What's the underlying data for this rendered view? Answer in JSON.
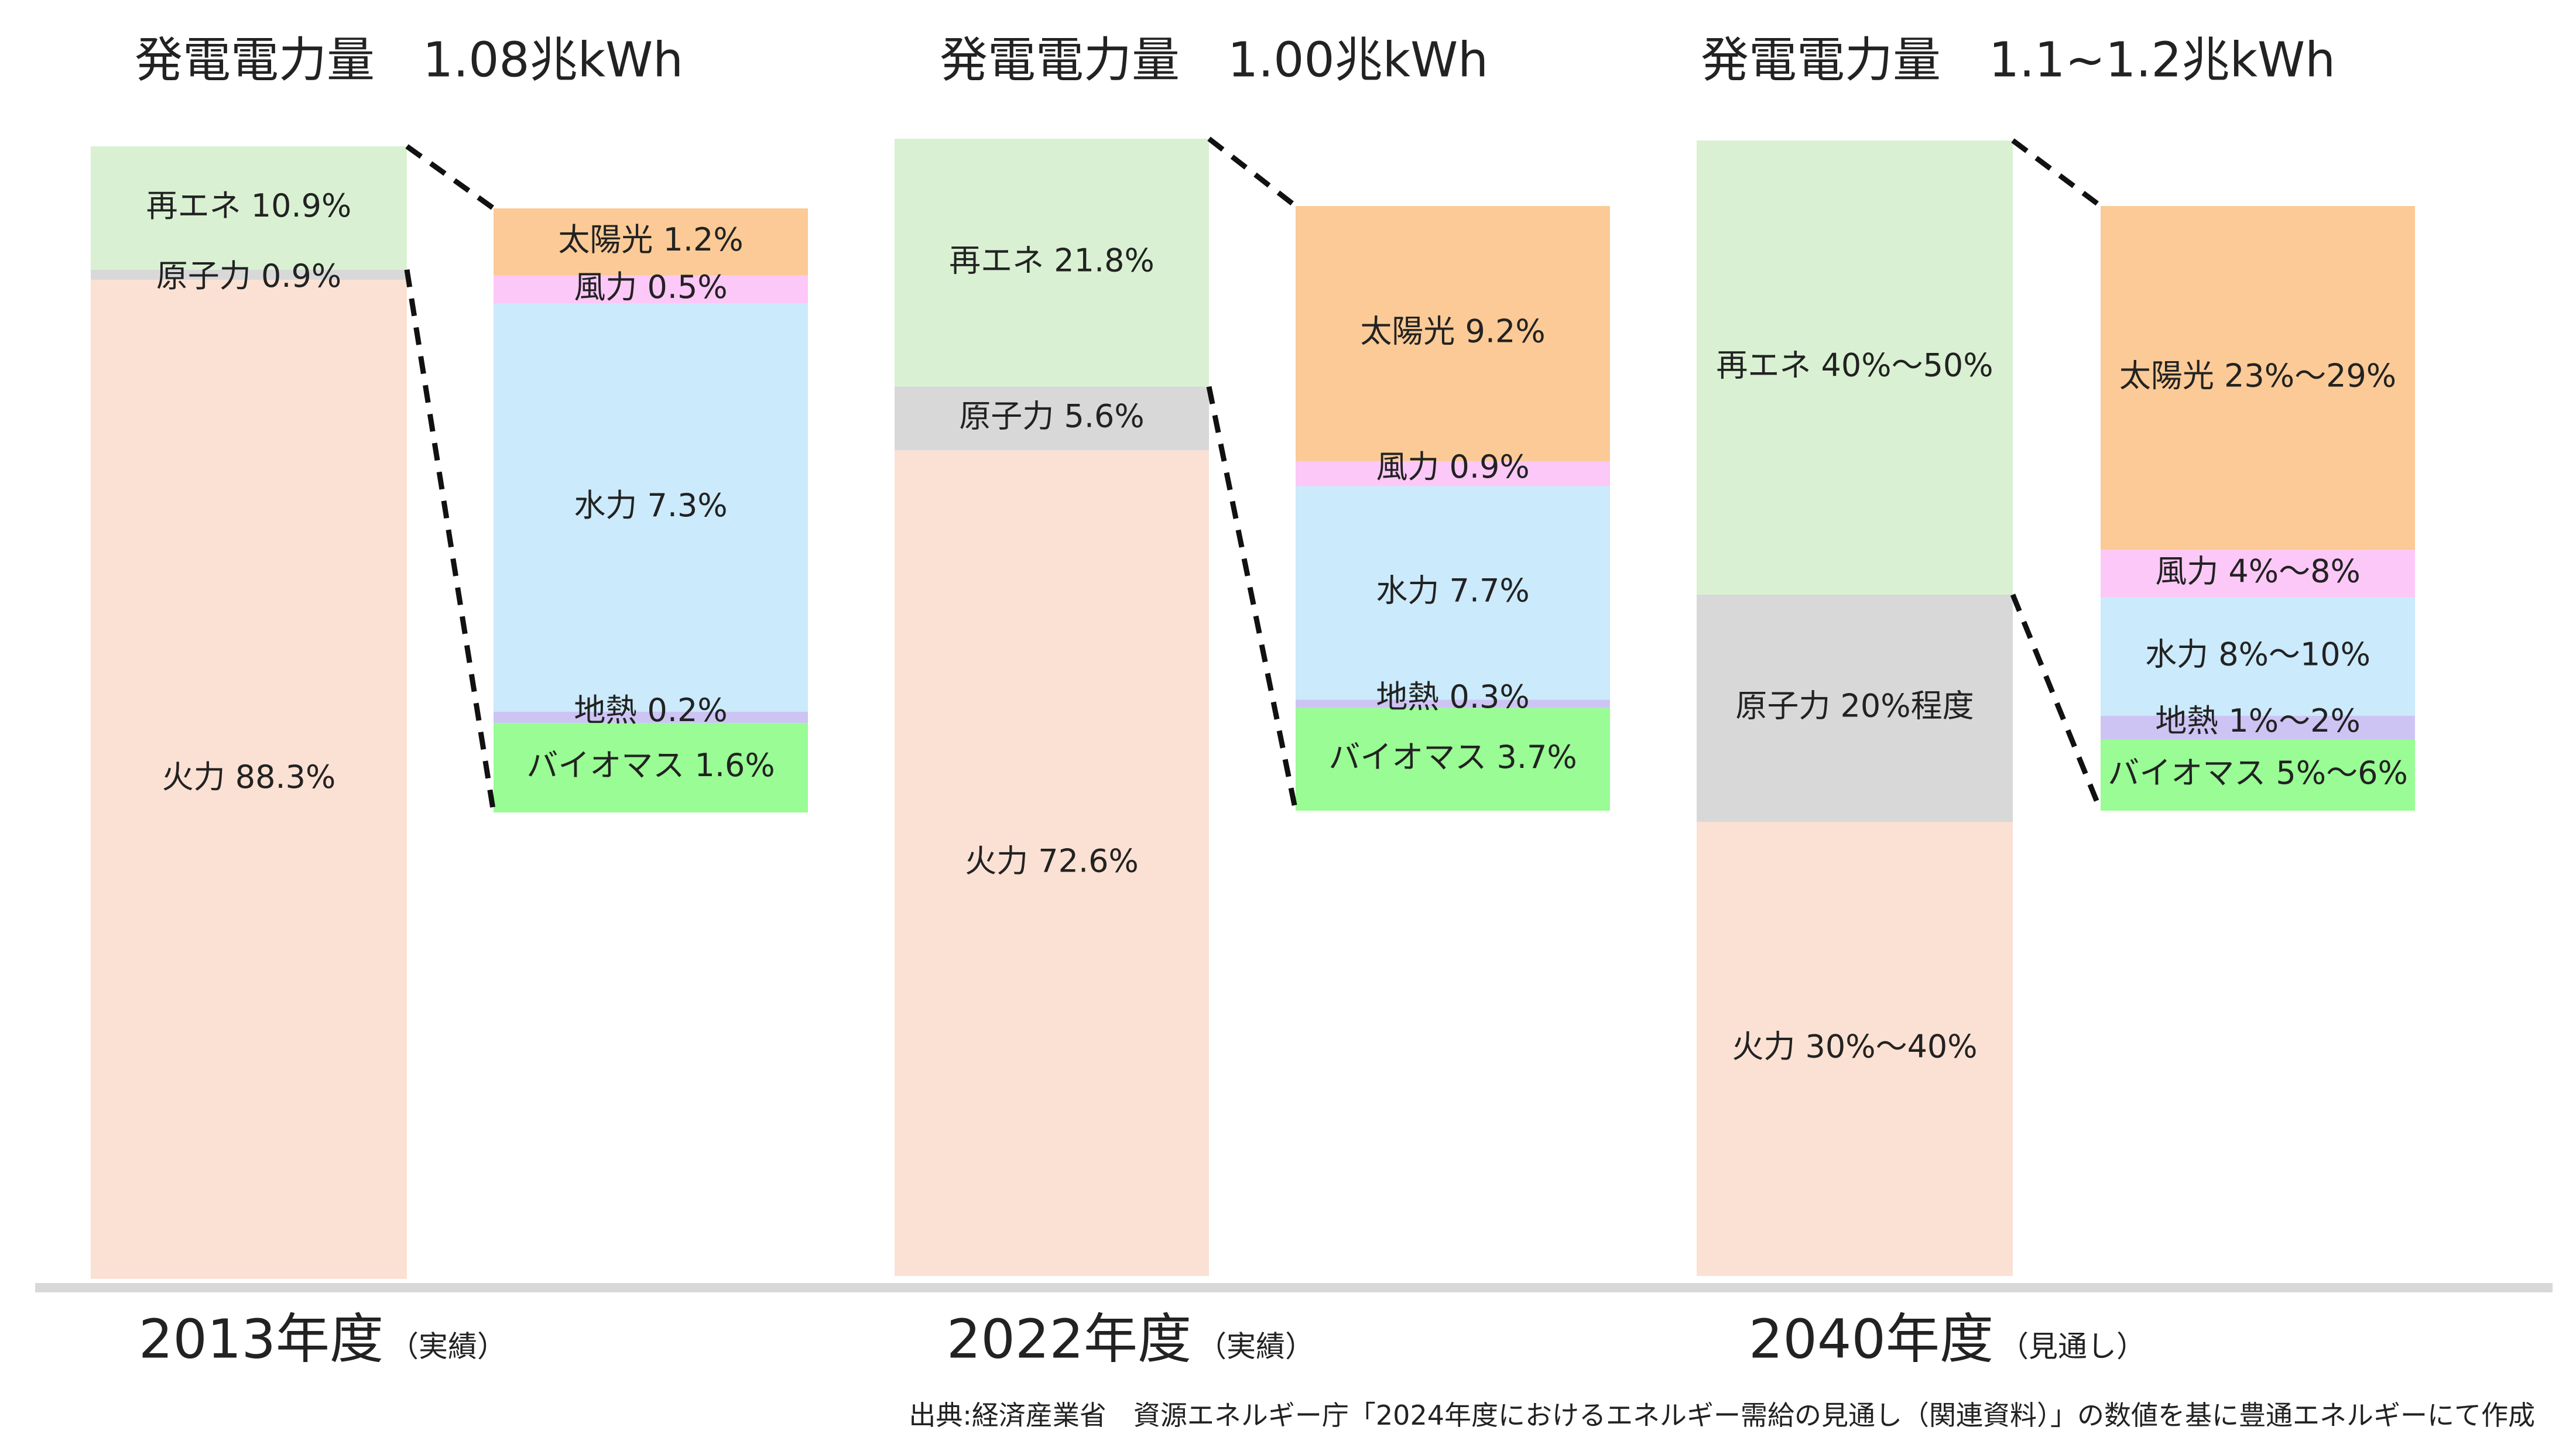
{
  "chart_data": [
    {
      "type": "stacked-bar",
      "title": "発電電力量　1.08兆kWh",
      "year_label": "2013年度",
      "year_note": "（実績）",
      "main_bar": [
        {
          "name": "再エネ",
          "value": 10.9,
          "label": "再エネ  10.9%",
          "color": "#d9f1d2"
        },
        {
          "name": "原子力",
          "value": 0.9,
          "label": "原子力  0.9%",
          "color": "#d8d8d8"
        },
        {
          "name": "火力",
          "value": 88.3,
          "label": "火力  88.3%",
          "color": "#fbe1d3"
        }
      ],
      "breakdown_bar": [
        {
          "name": "太陽光",
          "value": 1.2,
          "label": "太陽光  1.2%",
          "color": "#fbca96"
        },
        {
          "name": "風力",
          "value": 0.5,
          "label": "風力  0.5%",
          "color": "#fcc8f7"
        },
        {
          "name": "水力",
          "value": 7.3,
          "label": "水力  7.3%",
          "color": "#cbeafb"
        },
        {
          "name": "地熱",
          "value": 0.2,
          "label": "地熱  0.2%",
          "color": "#cdc4f4"
        },
        {
          "name": "バイオマス",
          "value": 1.6,
          "label": "バイオマス  1.6%",
          "color": "#99fc94"
        }
      ]
    },
    {
      "type": "stacked-bar",
      "title": "発電電力量　1.00兆kWh",
      "year_label": "2022年度",
      "year_note": "（実績）",
      "main_bar": [
        {
          "name": "再エネ",
          "value": 21.8,
          "label": "再エネ  21.8%",
          "color": "#d9f1d2"
        },
        {
          "name": "原子力",
          "value": 5.6,
          "label": "原子力  5.6%",
          "color": "#d8d8d8"
        },
        {
          "name": "火力",
          "value": 72.6,
          "label": "火力  72.6%",
          "color": "#fbe1d3"
        }
      ],
      "breakdown_bar": [
        {
          "name": "太陽光",
          "value": 9.2,
          "label": "太陽光  9.2%",
          "color": "#fbca96"
        },
        {
          "name": "風力",
          "value": 0.9,
          "label": "風力  0.9%",
          "color": "#fcc8f7"
        },
        {
          "name": "水力",
          "value": 7.7,
          "label": "水力  7.7%",
          "color": "#cbeafb"
        },
        {
          "name": "地熱",
          "value": 0.3,
          "label": "地熱  0.3%",
          "color": "#cdc4f4"
        },
        {
          "name": "バイオマス",
          "value": 3.7,
          "label": "バイオマス  3.7%",
          "color": "#99fc94"
        }
      ]
    },
    {
      "type": "stacked-bar",
      "title": "発電電力量　1.1~1.2兆kWh",
      "year_label": "2040年度",
      "year_note": "（見通し）",
      "main_bar": [
        {
          "name": "再エネ",
          "value": 40,
          "value_range": [
            40,
            50
          ],
          "label": "再エネ  40%〜50%",
          "color": "#d9f1d2"
        },
        {
          "name": "原子力",
          "value": 20,
          "value_range": [
            20,
            20
          ],
          "label": "原子力  20%程度",
          "color": "#d8d8d8"
        },
        {
          "name": "火力",
          "value": 40,
          "value_range": [
            30,
            40
          ],
          "label": "火力  30%〜40%",
          "color": "#fbe1d3"
        }
      ],
      "breakdown_bar": [
        {
          "name": "太陽光",
          "value": 29,
          "value_range": [
            23,
            29
          ],
          "label": "太陽光  23%〜29%",
          "color": "#fbca96"
        },
        {
          "name": "風力",
          "value": 4,
          "value_range": [
            4,
            8
          ],
          "label": "風力  4%〜8%",
          "color": "#fcc8f7"
        },
        {
          "name": "水力",
          "value": 10,
          "value_range": [
            8,
            10
          ],
          "label": "水力  8%〜10%",
          "color": "#cbeafb"
        },
        {
          "name": "地熱",
          "value": 2,
          "value_range": [
            1,
            2
          ],
          "label": "地熱  1%〜2%",
          "color": "#cdc4f4"
        },
        {
          "name": "バイオマス",
          "value": 6,
          "value_range": [
            5,
            6
          ],
          "label": "バイオマス  5%〜6%",
          "color": "#99fc94"
        }
      ]
    }
  ],
  "source_note": "出典:経済産業省　資源エネルギー庁「2024年度におけるエネルギー需給の見通し（関連資料）」の数値を基に豊通エネルギーにて作成",
  "colors": {
    "baseline": "#d8d8d8",
    "connector": "#111111"
  }
}
